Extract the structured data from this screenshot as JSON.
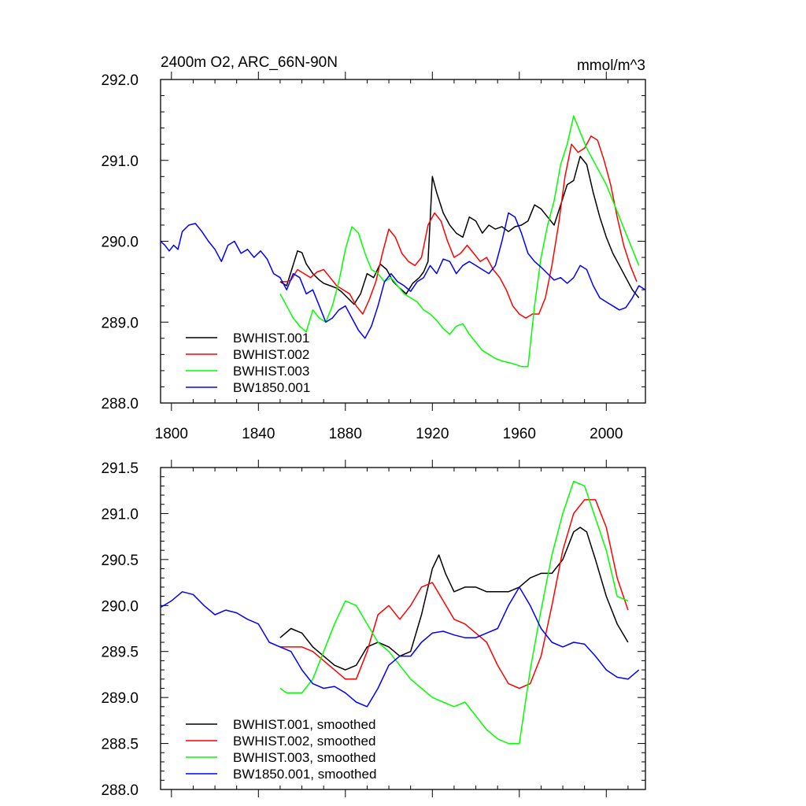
{
  "chart_data": [
    {
      "type": "line",
      "title": "2400m O2, ARC_66N-90N",
      "units": "mmol/m^3",
      "xlim": [
        1795,
        2018
      ],
      "ylim": [
        288.0,
        292.0
      ],
      "x_ticks": [
        1800,
        1840,
        1880,
        1920,
        1960,
        2000
      ],
      "x_tick_labels": [
        "1800",
        "1840",
        "1880",
        "1920",
        "1960",
        "2000"
      ],
      "y_ticks": [
        288.0,
        289.0,
        290.0,
        291.0,
        292.0
      ],
      "y_tick_labels": [
        "288.0",
        "289.0",
        "290.0",
        "291.0",
        "292.0"
      ],
      "show_x_labels": true,
      "grid": false,
      "legend_position": "lower-left",
      "series": [
        {
          "name": "BWHIST.001",
          "color": "#000000",
          "x": [
            1850,
            1853,
            1855,
            1858,
            1860,
            1862,
            1865,
            1868,
            1870,
            1873,
            1876,
            1878,
            1881,
            1884,
            1887,
            1890,
            1893,
            1896,
            1899,
            1902,
            1905,
            1908,
            1911,
            1914,
            1916,
            1918,
            1920,
            1922,
            1925,
            1928,
            1931,
            1934,
            1937,
            1940,
            1943,
            1946,
            1949,
            1952,
            1955,
            1958,
            1961,
            1964,
            1967,
            1970,
            1973,
            1976,
            1979,
            1982,
            1985,
            1988,
            1991,
            1994,
            1997,
            2000,
            2003,
            2006,
            2009,
            2012,
            2015
          ],
          "y": [
            289.5,
            289.45,
            289.62,
            289.88,
            289.86,
            289.72,
            289.6,
            289.52,
            289.48,
            289.45,
            289.42,
            289.38,
            289.3,
            289.22,
            289.35,
            289.6,
            289.55,
            289.72,
            289.65,
            289.5,
            289.42,
            289.35,
            289.48,
            289.55,
            289.62,
            289.75,
            290.8,
            290.6,
            290.35,
            290.2,
            290.1,
            290.05,
            290.3,
            290.25,
            290.1,
            290.2,
            290.15,
            290.18,
            290.12,
            290.18,
            290.2,
            290.25,
            290.45,
            290.4,
            290.3,
            290.2,
            290.45,
            290.7,
            290.75,
            291.05,
            290.95,
            290.6,
            290.3,
            290.05,
            289.85,
            289.7,
            289.55,
            289.4,
            289.3
          ]
        },
        {
          "name": "BWHIST.002",
          "color": "#ff0000",
          "x": [
            1850,
            1853,
            1855,
            1858,
            1861,
            1864,
            1867,
            1870,
            1873,
            1876,
            1879,
            1882,
            1885,
            1888,
            1891,
            1894,
            1897,
            1900,
            1903,
            1906,
            1909,
            1912,
            1915,
            1918,
            1921,
            1924,
            1927,
            1930,
            1933,
            1936,
            1939,
            1942,
            1945,
            1948,
            1951,
            1954,
            1957,
            1960,
            1963,
            1966,
            1969,
            1972,
            1975,
            1978,
            1981,
            1984,
            1987,
            1990,
            1993,
            1996,
            1999,
            2002,
            2005,
            2008,
            2011,
            2014
          ],
          "y": [
            289.5,
            289.5,
            289.52,
            289.65,
            289.6,
            289.55,
            289.62,
            289.65,
            289.55,
            289.45,
            289.4,
            289.35,
            289.2,
            289.1,
            289.28,
            289.5,
            289.85,
            290.15,
            290.05,
            289.85,
            289.75,
            289.7,
            289.8,
            290.2,
            290.35,
            290.25,
            290.0,
            289.8,
            289.85,
            289.95,
            289.85,
            289.75,
            289.8,
            289.65,
            289.55,
            289.4,
            289.2,
            289.1,
            289.05,
            289.1,
            289.1,
            289.3,
            289.7,
            290.2,
            290.8,
            291.2,
            291.1,
            291.15,
            291.3,
            291.25,
            291.0,
            290.7,
            290.3,
            289.95,
            289.7,
            289.5
          ]
        },
        {
          "name": "BWHIST.003",
          "color": "#00ff00",
          "x": [
            1850,
            1853,
            1856,
            1859,
            1862,
            1865,
            1868,
            1871,
            1874,
            1877,
            1880,
            1883,
            1886,
            1889,
            1892,
            1895,
            1898,
            1901,
            1904,
            1907,
            1910,
            1913,
            1916,
            1919,
            1922,
            1925,
            1928,
            1931,
            1934,
            1937,
            1940,
            1943,
            1946,
            1949,
            1952,
            1955,
            1958,
            1961,
            1964,
            1967,
            1970,
            1973,
            1976,
            1979,
            1982,
            1985,
            1988,
            1991,
            1994,
            1997,
            2000,
            2003,
            2006,
            2009,
            2012,
            2015
          ],
          "y": [
            289.35,
            289.2,
            289.05,
            288.95,
            288.88,
            289.15,
            289.05,
            289.0,
            289.2,
            289.5,
            289.9,
            290.18,
            290.1,
            289.85,
            289.65,
            289.6,
            289.5,
            289.55,
            289.45,
            289.35,
            289.3,
            289.25,
            289.15,
            289.1,
            289.02,
            288.92,
            288.85,
            288.95,
            288.98,
            288.85,
            288.75,
            288.65,
            288.6,
            288.55,
            288.52,
            288.5,
            288.48,
            288.45,
            288.45,
            289.2,
            289.8,
            290.2,
            290.5,
            290.95,
            291.2,
            291.55,
            291.35,
            291.15,
            291.0,
            290.85,
            290.7,
            290.5,
            290.3,
            290.1,
            289.9,
            289.7
          ]
        },
        {
          "name": "BW1850.001",
          "color": "#0000ff",
          "x": [
            1795,
            1797,
            1799,
            1801,
            1803,
            1805,
            1808,
            1811,
            1814,
            1817,
            1820,
            1823,
            1826,
            1829,
            1832,
            1835,
            1838,
            1841,
            1844,
            1847,
            1850,
            1853,
            1856,
            1859,
            1862,
            1865,
            1868,
            1871,
            1874,
            1877,
            1880,
            1883,
            1886,
            1889,
            1892,
            1895,
            1898,
            1901,
            1904,
            1907,
            1910,
            1913,
            1916,
            1919,
            1922,
            1925,
            1928,
            1931,
            1934,
            1937,
            1940,
            1943,
            1946,
            1949,
            1952,
            1955,
            1958,
            1961,
            1964,
            1967,
            1970,
            1973,
            1976,
            1979,
            1982,
            1985,
            1988,
            1991,
            1994,
            1997,
            2000,
            2003,
            2006,
            2009,
            2012,
            2015,
            2018
          ],
          "y": [
            290.0,
            289.95,
            289.88,
            289.95,
            289.9,
            290.12,
            290.2,
            290.22,
            290.12,
            290.0,
            289.9,
            289.75,
            289.95,
            290.0,
            289.85,
            289.9,
            289.8,
            289.88,
            289.78,
            289.6,
            289.55,
            289.4,
            289.6,
            289.55,
            289.35,
            289.4,
            289.2,
            289.0,
            289.05,
            289.15,
            289.2,
            289.05,
            288.9,
            288.8,
            288.95,
            289.2,
            289.5,
            289.6,
            289.5,
            289.45,
            289.38,
            289.5,
            289.55,
            289.7,
            289.6,
            289.78,
            289.75,
            289.6,
            289.7,
            289.75,
            289.7,
            289.65,
            289.6,
            289.7,
            290.0,
            290.35,
            290.3,
            290.1,
            289.85,
            289.75,
            289.68,
            289.6,
            289.52,
            289.55,
            289.48,
            289.55,
            289.7,
            289.65,
            289.45,
            289.3,
            289.25,
            289.2,
            289.15,
            289.18,
            289.3,
            289.45,
            289.4
          ]
        }
      ]
    },
    {
      "type": "line",
      "title": "",
      "xlim": [
        1795,
        2018
      ],
      "ylim": [
        288.0,
        291.5
      ],
      "x_ticks": [
        1800,
        1840,
        1880,
        1920,
        1960,
        2000
      ],
      "show_x_labels": false,
      "y_ticks": [
        288.0,
        288.5,
        289.0,
        289.5,
        290.0,
        290.5,
        291.0,
        291.5
      ],
      "y_tick_labels": [
        "288.0",
        "288.5",
        "289.0",
        "289.5",
        "290.0",
        "290.5",
        "291.0",
        "291.5"
      ],
      "grid": false,
      "legend_position": "lower-left",
      "series": [
        {
          "name": "BWHIST.001, smoothed",
          "color": "#000000",
          "x": [
            1850,
            1855,
            1860,
            1865,
            1870,
            1875,
            1880,
            1885,
            1890,
            1895,
            1900,
            1905,
            1910,
            1915,
            1920,
            1923,
            1926,
            1930,
            1935,
            1940,
            1945,
            1950,
            1955,
            1960,
            1965,
            1970,
            1975,
            1980,
            1985,
            1988,
            1991,
            1995,
            2000,
            2005,
            2010
          ],
          "y": [
            289.65,
            289.75,
            289.7,
            289.55,
            289.45,
            289.35,
            289.3,
            289.35,
            289.55,
            289.6,
            289.55,
            289.45,
            289.5,
            289.9,
            290.4,
            290.55,
            290.35,
            290.15,
            290.2,
            290.2,
            290.15,
            290.15,
            290.15,
            290.2,
            290.3,
            290.35,
            290.35,
            290.5,
            290.8,
            290.85,
            290.8,
            290.5,
            290.1,
            289.8,
            289.6
          ]
        },
        {
          "name": "BWHIST.002, smoothed",
          "color": "#ff0000",
          "x": [
            1850,
            1855,
            1860,
            1865,
            1870,
            1875,
            1880,
            1885,
            1890,
            1895,
            1900,
            1905,
            1910,
            1915,
            1920,
            1925,
            1930,
            1935,
            1940,
            1945,
            1950,
            1955,
            1960,
            1965,
            1970,
            1975,
            1980,
            1985,
            1990,
            1995,
            2000,
            2005,
            2010
          ],
          "y": [
            289.55,
            289.55,
            289.55,
            289.5,
            289.4,
            289.3,
            289.2,
            289.2,
            289.5,
            289.9,
            290.0,
            289.85,
            290.0,
            290.2,
            290.25,
            290.05,
            289.85,
            289.8,
            289.7,
            289.6,
            289.35,
            289.15,
            289.1,
            289.15,
            289.45,
            290.0,
            290.6,
            291.0,
            291.15,
            291.15,
            290.85,
            290.3,
            289.95
          ]
        },
        {
          "name": "BWHIST.003, smoothed",
          "color": "#00ff00",
          "x": [
            1850,
            1853,
            1856,
            1860,
            1865,
            1870,
            1875,
            1880,
            1885,
            1890,
            1895,
            1900,
            1905,
            1910,
            1915,
            1920,
            1925,
            1930,
            1935,
            1940,
            1945,
            1950,
            1955,
            1960,
            1965,
            1970,
            1975,
            1980,
            1985,
            1990,
            1995,
            2000,
            2005,
            2010
          ],
          "y": [
            289.1,
            289.05,
            289.05,
            289.05,
            289.2,
            289.5,
            289.8,
            290.05,
            290.0,
            289.8,
            289.6,
            289.5,
            289.35,
            289.2,
            289.1,
            289.0,
            288.95,
            288.9,
            288.95,
            288.8,
            288.65,
            288.55,
            288.5,
            288.5,
            289.3,
            289.95,
            290.55,
            291.0,
            291.35,
            291.3,
            290.95,
            290.6,
            290.1,
            290.05
          ]
        },
        {
          "name": "BW1850.001, smoothed",
          "color": "#0000ff",
          "x": [
            1795,
            1800,
            1805,
            1810,
            1815,
            1820,
            1825,
            1830,
            1835,
            1840,
            1845,
            1850,
            1855,
            1860,
            1865,
            1870,
            1875,
            1880,
            1885,
            1890,
            1895,
            1900,
            1905,
            1910,
            1915,
            1920,
            1925,
            1930,
            1935,
            1940,
            1945,
            1950,
            1955,
            1960,
            1965,
            1970,
            1975,
            1980,
            1985,
            1990,
            1995,
            2000,
            2005,
            2010,
            2015
          ],
          "y": [
            289.98,
            290.05,
            290.15,
            290.12,
            290.0,
            289.9,
            289.95,
            289.92,
            289.85,
            289.8,
            289.6,
            289.55,
            289.5,
            289.3,
            289.15,
            289.1,
            289.12,
            289.05,
            288.95,
            288.9,
            289.1,
            289.35,
            289.45,
            289.45,
            289.6,
            289.7,
            289.72,
            289.68,
            289.65,
            289.65,
            289.7,
            289.75,
            290.0,
            290.2,
            290.0,
            289.75,
            289.6,
            289.55,
            289.6,
            289.58,
            289.45,
            289.3,
            289.22,
            289.2,
            289.3
          ]
        }
      ]
    }
  ]
}
